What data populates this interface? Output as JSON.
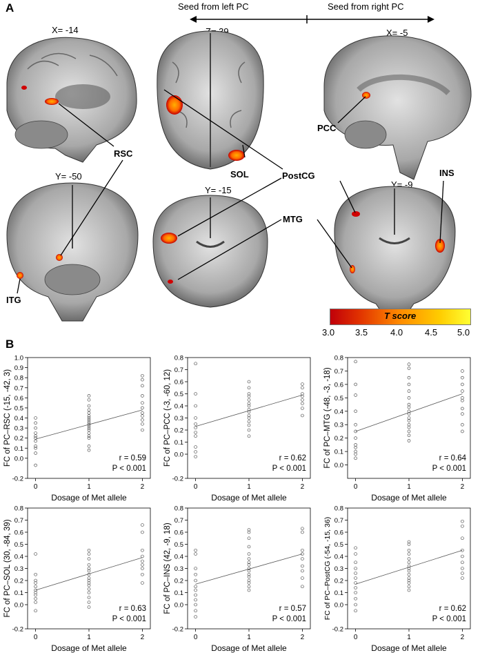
{
  "figure": {
    "panel_a_label": "A",
    "panel_b_label": "B",
    "seed_left": "Seed from left PC",
    "seed_right": "Seed from right PC",
    "slices": {
      "s1": "X= -14",
      "s2": "Z= 39",
      "s3": "X= -5",
      "s4": "Y= -50",
      "s5": "Y= -15",
      "s6": "Y= -9"
    },
    "regions": {
      "rsc": "RSC",
      "pcc": "PCC",
      "sol": "SOL",
      "postcg": "PostCG",
      "mtg": "MTG",
      "ins": "INS",
      "itg": "ITG"
    },
    "colorbar": {
      "title": "T score",
      "ticks": [
        "3.0",
        "3.5",
        "4.0",
        "4.5",
        "5.0"
      ],
      "colors": [
        "#c0000a",
        "#ff8c00",
        "#ffff33"
      ]
    }
  },
  "chart_data": [
    {
      "type": "scatter",
      "ylabel": "FC of PC–RSC (-15, -42, 3)",
      "xlabel": "Dosage of Met allele",
      "ylim": [
        -0.2,
        1.0
      ],
      "yticks": [
        "-0.2",
        "0.0",
        "0.1",
        "0.2",
        "0.3",
        "0.4",
        "0.5",
        "0.6",
        "0.7",
        "0.8",
        "0.9",
        "1.0"
      ],
      "xticks": [
        "0",
        "1",
        "2"
      ],
      "r_text": "r = 0.59",
      "p_text": "P < 0.001",
      "fit": [
        0.19,
        0.48
      ],
      "groups": [
        [
          -0.07,
          0.05,
          0.1,
          0.12,
          0.17,
          0.2,
          0.22,
          0.25,
          0.3,
          0.35,
          0.4
        ],
        [
          0.08,
          0.12,
          0.2,
          0.22,
          0.25,
          0.28,
          0.3,
          0.32,
          0.34,
          0.36,
          0.38,
          0.4,
          0.42,
          0.45,
          0.48,
          0.52,
          0.58,
          0.62
        ],
        [
          0.28,
          0.34,
          0.38,
          0.42,
          0.45,
          0.5,
          0.55,
          0.62,
          0.72,
          0.78,
          0.82
        ]
      ]
    },
    {
      "type": "scatter",
      "ylabel": "FC of PC–PCC (-3, -60, 12)",
      "xlabel": "Dosage of Met allele",
      "ylim": [
        -0.2,
        0.8
      ],
      "yticks": [
        "-0.2",
        "0.0",
        "0.1",
        "0.2",
        "0.3",
        "0.4",
        "0.5",
        "0.6",
        "0.7",
        "0.8"
      ],
      "xticks": [
        "0",
        "1",
        "2"
      ],
      "r_text": "r = 0.62",
      "p_text": "P < 0.001",
      "fit": [
        0.23,
        0.49
      ],
      "groups": [
        [
          -0.02,
          0.02,
          0.06,
          0.15,
          0.18,
          0.22,
          0.25,
          0.3,
          0.4,
          0.5,
          0.75
        ],
        [
          0.15,
          0.2,
          0.24,
          0.27,
          0.3,
          0.32,
          0.35,
          0.37,
          0.4,
          0.42,
          0.45,
          0.48,
          0.5,
          0.55,
          0.6
        ],
        [
          0.32,
          0.38,
          0.42,
          0.45,
          0.48,
          0.5,
          0.55,
          0.58
        ]
      ]
    },
    {
      "type": "scatter",
      "ylabel": "FC of PC–MTG (-48, -3, -18)",
      "xlabel": "Dosage of Met allele",
      "ylim": [
        -0.1,
        0.8
      ],
      "yticks": [
        "0.0",
        "0.1",
        "0.2",
        "0.3",
        "0.4",
        "0.5",
        "0.6",
        "0.7",
        "0.8"
      ],
      "xticks": [
        "0",
        "1",
        "2"
      ],
      "r_text": "r = 0.64",
      "p_text": "P < 0.001",
      "fit": [
        0.25,
        0.53
      ],
      "groups": [
        [
          0.05,
          0.08,
          0.1,
          0.13,
          0.15,
          0.2,
          0.25,
          0.3,
          0.4,
          0.52,
          0.6,
          0.77
        ],
        [
          0.18,
          0.22,
          0.25,
          0.28,
          0.3,
          0.33,
          0.35,
          0.38,
          0.4,
          0.43,
          0.45,
          0.5,
          0.55,
          0.6,
          0.65,
          0.72,
          0.75
        ],
        [
          0.25,
          0.3,
          0.38,
          0.42,
          0.48,
          0.5,
          0.55,
          0.6,
          0.65,
          0.7
        ]
      ]
    },
    {
      "type": "scatter",
      "ylabel": "FC of PC–SOL (30, -84, 39)",
      "xlabel": "Dosage of Met allele",
      "ylim": [
        -0.2,
        0.8
      ],
      "yticks": [
        "-0.2",
        "0.0",
        "0.1",
        "0.2",
        "0.3",
        "0.4",
        "0.5",
        "0.6",
        "0.7",
        "0.8"
      ],
      "xticks": [
        "0",
        "1",
        "2"
      ],
      "r_text": "r = 0.63",
      "p_text": "P < 0.001",
      "fit": [
        0.12,
        0.39
      ],
      "groups": [
        [
          -0.05,
          0.02,
          0.05,
          0.08,
          0.1,
          0.12,
          0.15,
          0.18,
          0.2,
          0.25,
          0.42
        ],
        [
          -0.02,
          0.02,
          0.06,
          0.1,
          0.13,
          0.16,
          0.18,
          0.2,
          0.22,
          0.25,
          0.28,
          0.3,
          0.33,
          0.38,
          0.42,
          0.45
        ],
        [
          0.18,
          0.25,
          0.3,
          0.33,
          0.36,
          0.4,
          0.45,
          0.6,
          0.66
        ]
      ]
    },
    {
      "type": "scatter",
      "ylabel": "FC of PC–INS (42, -9, 18)",
      "xlabel": "Dosage of Met allele",
      "ylim": [
        -0.2,
        0.8
      ],
      "yticks": [
        "-0.2",
        "0.0",
        "0.1",
        "0.2",
        "0.3",
        "0.4",
        "0.5",
        "0.6",
        "0.7",
        "0.8"
      ],
      "xticks": [
        "0",
        "1",
        "2"
      ],
      "r_text": "r = 0.57",
      "p_text": "P < 0.001",
      "fit": [
        0.17,
        0.42
      ],
      "groups": [
        [
          -0.1,
          -0.05,
          0.0,
          0.04,
          0.08,
          0.12,
          0.15,
          0.2,
          0.25,
          0.3,
          0.42,
          0.45
        ],
        [
          0.12,
          0.15,
          0.18,
          0.2,
          0.23,
          0.25,
          0.28,
          0.3,
          0.33,
          0.35,
          0.38,
          0.42,
          0.48,
          0.55,
          0.6,
          0.62
        ],
        [
          0.15,
          0.22,
          0.28,
          0.32,
          0.38,
          0.42,
          0.45,
          0.6,
          0.63
        ]
      ]
    },
    {
      "type": "scatter",
      "ylabel": "FC of PC–PostCG (-54, -15, 36)",
      "xlabel": "Dosage of Met allele",
      "ylim": [
        -0.2,
        0.8
      ],
      "yticks": [
        "-0.2",
        "0.0",
        "0.1",
        "0.2",
        "0.3",
        "0.4",
        "0.5",
        "0.6",
        "0.7",
        "0.8"
      ],
      "xticks": [
        "0",
        "1",
        "2"
      ],
      "r_text": "r = 0.62",
      "p_text": "P < 0.001",
      "fit": [
        0.17,
        0.45
      ],
      "groups": [
        [
          -0.05,
          0.0,
          0.05,
          0.1,
          0.14,
          0.18,
          0.22,
          0.26,
          0.3,
          0.35,
          0.42,
          0.47
        ],
        [
          0.12,
          0.15,
          0.18,
          0.2,
          0.22,
          0.25,
          0.28,
          0.3,
          0.32,
          0.35,
          0.38,
          0.42,
          0.45,
          0.5,
          0.52
        ],
        [
          0.22,
          0.26,
          0.3,
          0.35,
          0.4,
          0.45,
          0.55,
          0.65,
          0.69
        ]
      ]
    }
  ]
}
